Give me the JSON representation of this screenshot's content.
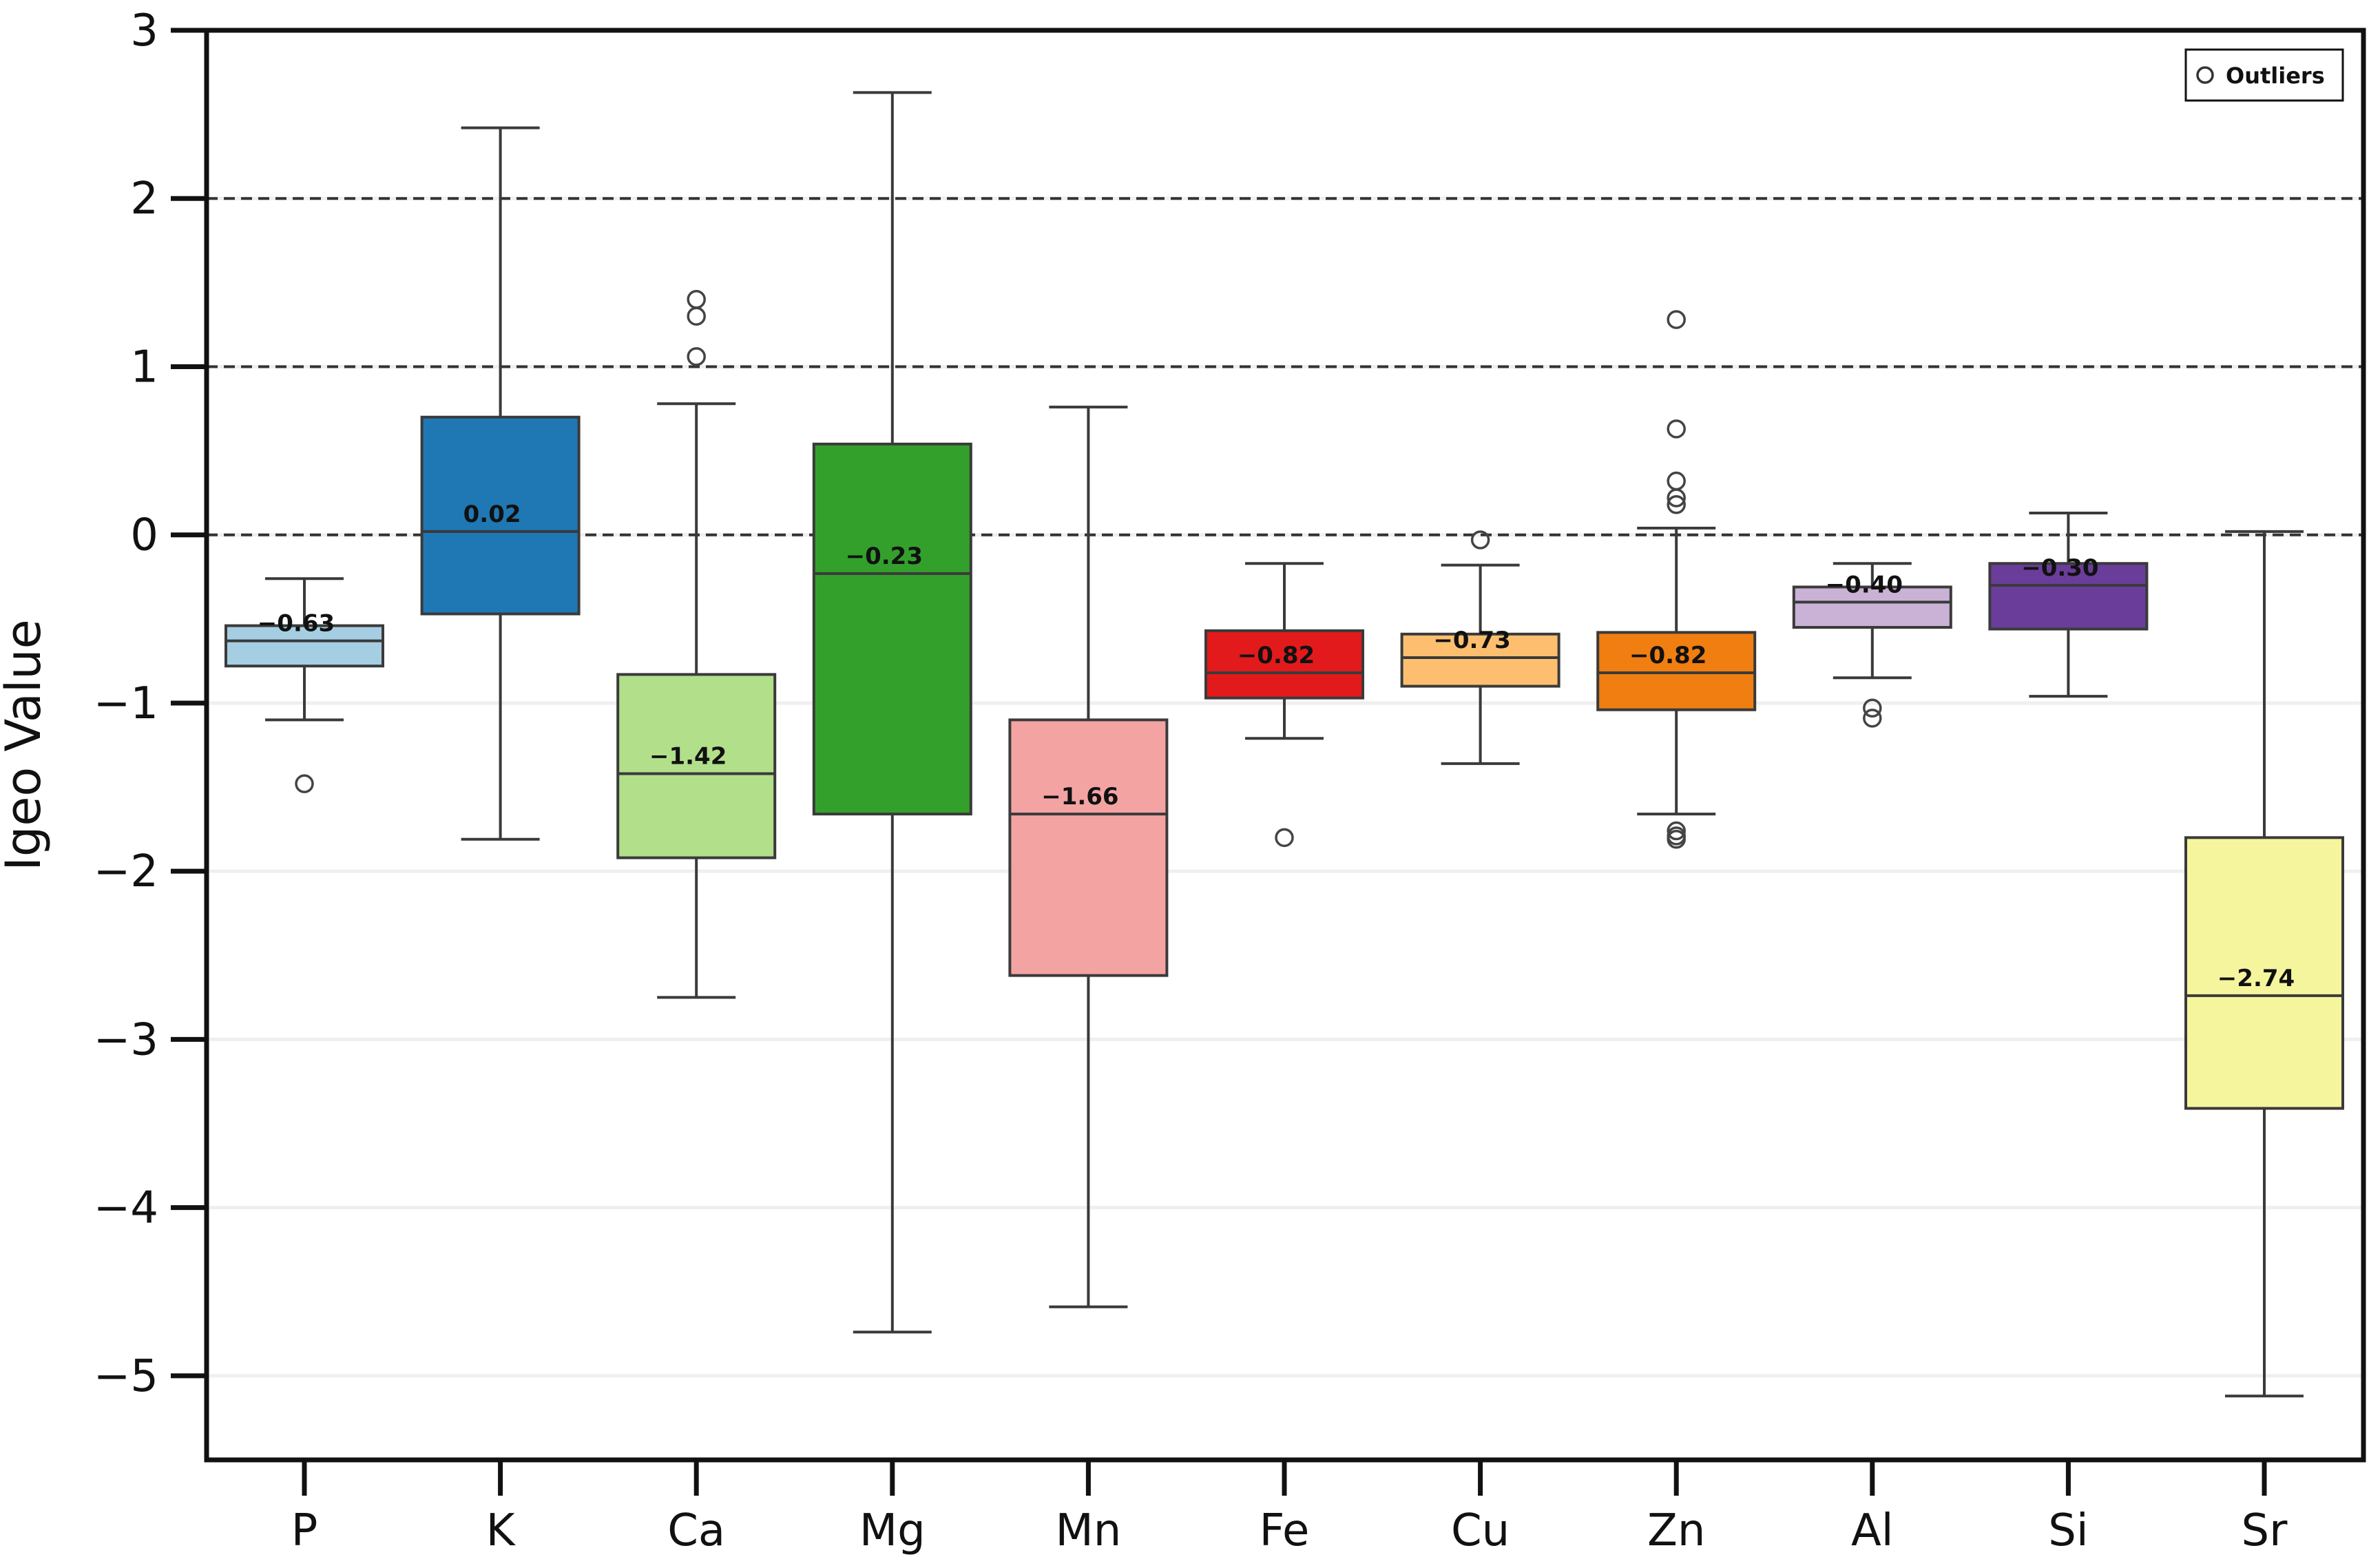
{
  "chart_data": {
    "type": "box",
    "title": "",
    "xlabel": "",
    "ylabel": "Igeo Value",
    "ylim": [
      -5.5,
      3
    ],
    "yticks": [
      3,
      2,
      1,
      0,
      -1,
      -2,
      -3,
      -4,
      -5
    ],
    "ytick_labels": [
      "3",
      "2",
      "1",
      "0",
      "−1",
      "−2",
      "−3",
      "−4",
      "−5"
    ],
    "dashed_reference_lines": [
      2,
      1,
      0
    ],
    "legend": {
      "label": "Outliers",
      "position": "top-right"
    },
    "series": [
      {
        "name": "P",
        "color": "#a6cee3",
        "whisker_low": -1.1,
        "q1": -0.78,
        "median": -0.63,
        "q3": -0.54,
        "whisker_high": -0.26,
        "outliers": [
          -1.48
        ],
        "median_label": "−0.63"
      },
      {
        "name": "K",
        "color": "#1f78b4",
        "whisker_low": -1.81,
        "q1": -0.47,
        "median": 0.02,
        "q3": 0.7,
        "whisker_high": 2.42,
        "outliers": [],
        "median_label": "0.02"
      },
      {
        "name": "Ca",
        "color": "#b2df8a",
        "whisker_low": -2.75,
        "q1": -1.92,
        "median": -1.42,
        "q3": -0.83,
        "whisker_high": 0.78,
        "outliers": [
          1.4,
          1.3,
          1.06
        ],
        "median_label": "−1.42"
      },
      {
        "name": "Mg",
        "color": "#33a02c",
        "whisker_low": -4.74,
        "q1": -1.66,
        "median": -0.23,
        "q3": 0.54,
        "whisker_high": 2.63,
        "outliers": [],
        "median_label": "−0.23"
      },
      {
        "name": "Mn",
        "color": "#f4a3a3",
        "whisker_low": -4.59,
        "q1": -2.62,
        "median": -1.66,
        "q3": -1.1,
        "whisker_high": 0.76,
        "outliers": [],
        "median_label": "−1.66"
      },
      {
        "name": "Fe",
        "color": "#e31a1c",
        "whisker_low": -1.21,
        "q1": -0.97,
        "median": -0.82,
        "q3": -0.57,
        "whisker_high": -0.17,
        "outliers": [
          -1.8
        ],
        "median_label": "−0.82"
      },
      {
        "name": "Cu",
        "color": "#fdbf6f",
        "whisker_low": -1.36,
        "q1": -0.9,
        "median": -0.73,
        "q3": -0.59,
        "whisker_high": -0.18,
        "outliers": [
          -0.03
        ],
        "median_label": "−0.73"
      },
      {
        "name": "Zn",
        "color": "#f07e11",
        "whisker_low": -1.66,
        "q1": -1.04,
        "median": -0.82,
        "q3": -0.58,
        "whisker_high": 0.04,
        "outliers": [
          1.28,
          0.63,
          0.32,
          0.22,
          0.18,
          -1.76,
          -1.79,
          -1.81
        ],
        "median_label": "−0.82"
      },
      {
        "name": "Al",
        "color": "#cab2d6",
        "whisker_low": -0.85,
        "q1": -0.55,
        "median": -0.4,
        "q3": -0.31,
        "whisker_high": -0.17,
        "outliers": [
          -1.03,
          -1.09
        ],
        "median_label": "−0.40"
      },
      {
        "name": "Si",
        "color": "#6a3d9a",
        "whisker_low": -0.96,
        "q1": -0.56,
        "median": -0.3,
        "q3": -0.17,
        "whisker_high": 0.13,
        "outliers": [],
        "median_label": "−0.30"
      },
      {
        "name": "Sr",
        "color": "#f5f59e",
        "whisker_low": -5.12,
        "q1": -3.41,
        "median": -2.74,
        "q3": -1.8,
        "whisker_high": 0.02,
        "outliers": [],
        "median_label": "−2.74"
      }
    ]
  }
}
